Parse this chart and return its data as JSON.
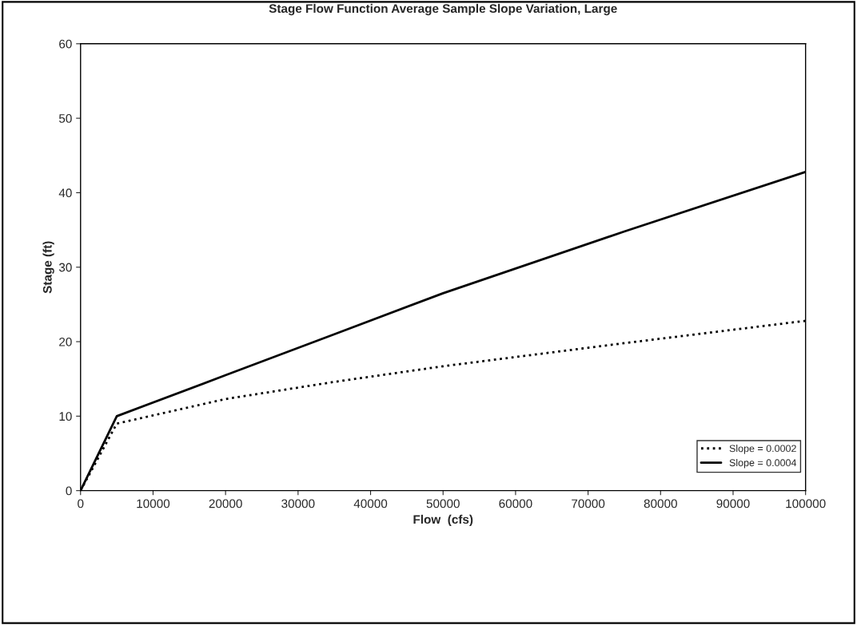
{
  "chart_data": {
    "type": "line",
    "title": "Stage Flow Function Average Sample Slope Variation, Large",
    "xlabel": "Flow  (cfs)",
    "ylabel": "Stage (ft)",
    "x": [
      0,
      5000,
      20000,
      35000,
      50000,
      75000,
      100000
    ],
    "series": [
      {
        "name": "Slope = 0.0002",
        "color": "#000000",
        "line_style": "dotted",
        "values": [
          0,
          9,
          12.3,
          14.6,
          16.7,
          19.8,
          22.8
        ]
      },
      {
        "name": "Slope = 0.0004",
        "color": "#000000",
        "line_style": "solid",
        "values": [
          0,
          10,
          15.5,
          21,
          26.5,
          34.8,
          42.8
        ]
      }
    ],
    "xlim": [
      0,
      100000
    ],
    "xticks": [
      0,
      10000,
      20000,
      30000,
      40000,
      50000,
      60000,
      70000,
      80000,
      90000,
      100000
    ],
    "ylim": [
      0,
      60
    ],
    "yticks": [
      0,
      10,
      20,
      30,
      40,
      50,
      60
    ],
    "grid": false,
    "legend": "bottom right"
  }
}
